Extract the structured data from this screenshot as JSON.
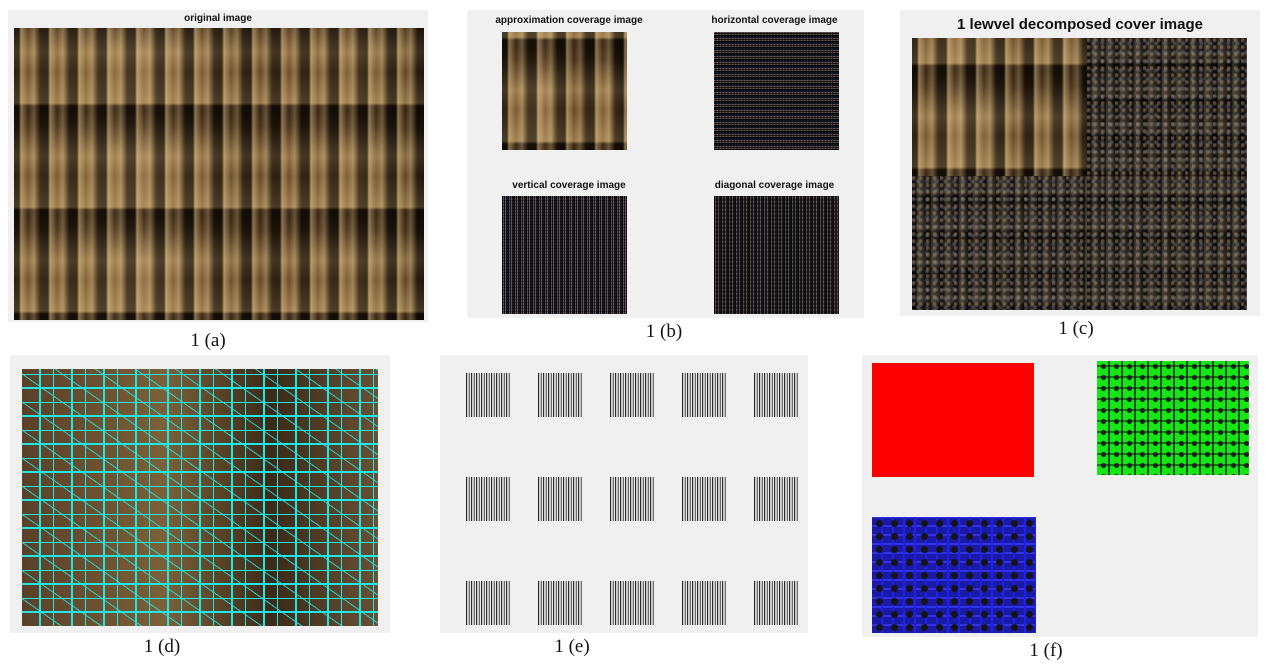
{
  "panel_a": {
    "title": "original image",
    "caption": "1 (a)"
  },
  "panel_b": {
    "caption": "1 (b)",
    "labels": {
      "approximation": "approximation coverage image",
      "horizontal": "horizontal coverage image",
      "vertical": "vertical coverage image",
      "diagonal": "diagonal coverage image"
    }
  },
  "panel_c": {
    "title": "1 lewvel decomposed cover image",
    "caption": "1 (c)"
  },
  "panel_d": {
    "caption": "1 (d)"
  },
  "panel_e": {
    "caption": "1 (e)",
    "grid": {
      "rows": 3,
      "cols": 5
    }
  },
  "panel_f": {
    "caption": "1 (f)",
    "cluster_colors": {
      "red": "#ff0000",
      "green": "#16e616",
      "blue": "#1a1aa8"
    }
  },
  "colors": {
    "panel_bg": "#f0f0f0",
    "segment_boundary": "#22e6e6"
  }
}
